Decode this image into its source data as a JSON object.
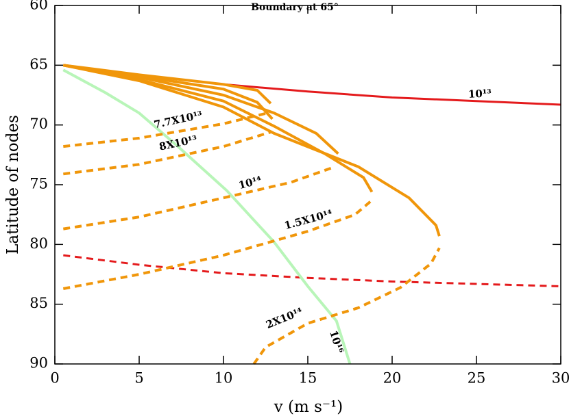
{
  "chart_data": {
    "type": "line",
    "title": "Boundary at 65°",
    "xlabel": "v (m s⁻¹)",
    "ylabel": "Latitude of nodes",
    "xlim": [
      0,
      30
    ],
    "xticks": [
      0,
      5,
      10,
      15,
      20,
      25,
      30
    ],
    "ylim": [
      60,
      90
    ],
    "yticks": [
      60,
      65,
      70,
      75,
      80,
      85,
      90
    ],
    "y_reversed": true,
    "series": [
      {
        "name": "10¹³",
        "color": "#e41a1c",
        "dashed": false,
        "x": [
          0.5,
          5,
          10,
          15,
          20,
          25,
          30
        ],
        "values": [
          65.0,
          65.8,
          66.6,
          67.2,
          67.7,
          68.0,
          68.3
        ]
      },
      {
        "color": "#e41a1c",
        "dashed": true,
        "x": [
          0.5,
          5,
          10,
          15,
          20,
          25,
          30
        ],
        "values": [
          80.9,
          81.7,
          82.4,
          82.8,
          83.1,
          83.3,
          83.5
        ]
      },
      {
        "name": "10¹⁶",
        "color": "#b8f5b8",
        "dashed": false,
        "x": [
          0.5,
          3,
          5,
          7.3,
          10.2,
          13,
          15,
          16.7,
          17.5
        ],
        "values": [
          65.4,
          67.3,
          69.0,
          71.8,
          75.5,
          79.8,
          83.5,
          86.4,
          90
        ]
      },
      {
        "color": "#f0960a",
        "dashed": false,
        "x": [
          0.5,
          5,
          10,
          12,
          12.8
        ],
        "values": [
          65.0,
          65.8,
          66.6,
          67.1,
          68.2
        ]
      },
      {
        "color": "#f0960a",
        "dashed": false,
        "x": [
          0.5,
          5,
          10,
          12,
          12.9
        ],
        "values": [
          65.0,
          65.9,
          67.0,
          68.1,
          69.5
        ]
      },
      {
        "color": "#f0960a",
        "dashed": false,
        "x": [
          0.5,
          5,
          10,
          13,
          15.5,
          16.8
        ],
        "values": [
          65.0,
          66.0,
          67.5,
          69.0,
          70.7,
          72.4
        ]
      },
      {
        "color": "#f0960a",
        "dashed": false,
        "x": [
          0.5,
          5,
          10,
          13,
          16,
          18.3,
          18.8
        ],
        "values": [
          65.0,
          66.2,
          68.0,
          70.1,
          72.4,
          74.4,
          75.6
        ]
      },
      {
        "color": "#f0960a",
        "dashed": false,
        "x": [
          0.5,
          5,
          10,
          13,
          18,
          21,
          22.6,
          22.8
        ],
        "values": [
          65.0,
          66.3,
          68.5,
          70.7,
          73.5,
          76.1,
          78.4,
          79.3
        ]
      },
      {
        "name": "7.7X10¹³",
        "color": "#f0960a",
        "dashed": true,
        "x": [
          0.5,
          5,
          10,
          12.6
        ],
        "values": [
          71.8,
          71.1,
          69.9,
          69.0
        ]
      },
      {
        "name": "8X10¹³",
        "color": "#f0960a",
        "dashed": true,
        "x": [
          0.5,
          5,
          10,
          12.8
        ],
        "values": [
          74.1,
          73.3,
          71.8,
          70.6
        ]
      },
      {
        "name": "10¹⁴",
        "color": "#f0960a",
        "dashed": true,
        "x": [
          0.5,
          5,
          10,
          14,
          16.6
        ],
        "values": [
          78.7,
          77.7,
          76.1,
          74.8,
          73.5
        ]
      },
      {
        "name": "1.5X10¹⁴",
        "color": "#f0960a",
        "dashed": true,
        "x": [
          0.5,
          5,
          10,
          15,
          17.8,
          18.8
        ],
        "values": [
          83.7,
          82.5,
          80.9,
          78.9,
          77.5,
          76.3
        ]
      },
      {
        "name": "2X10¹⁴",
        "color": "#f0960a",
        "dashed": true,
        "x": [
          11.8,
          12.5,
          15,
          18,
          20.5,
          22.3,
          22.8
        ],
        "values": [
          90,
          88.6,
          86.6,
          85.3,
          83.6,
          81.6,
          80.3
        ]
      }
    ]
  }
}
